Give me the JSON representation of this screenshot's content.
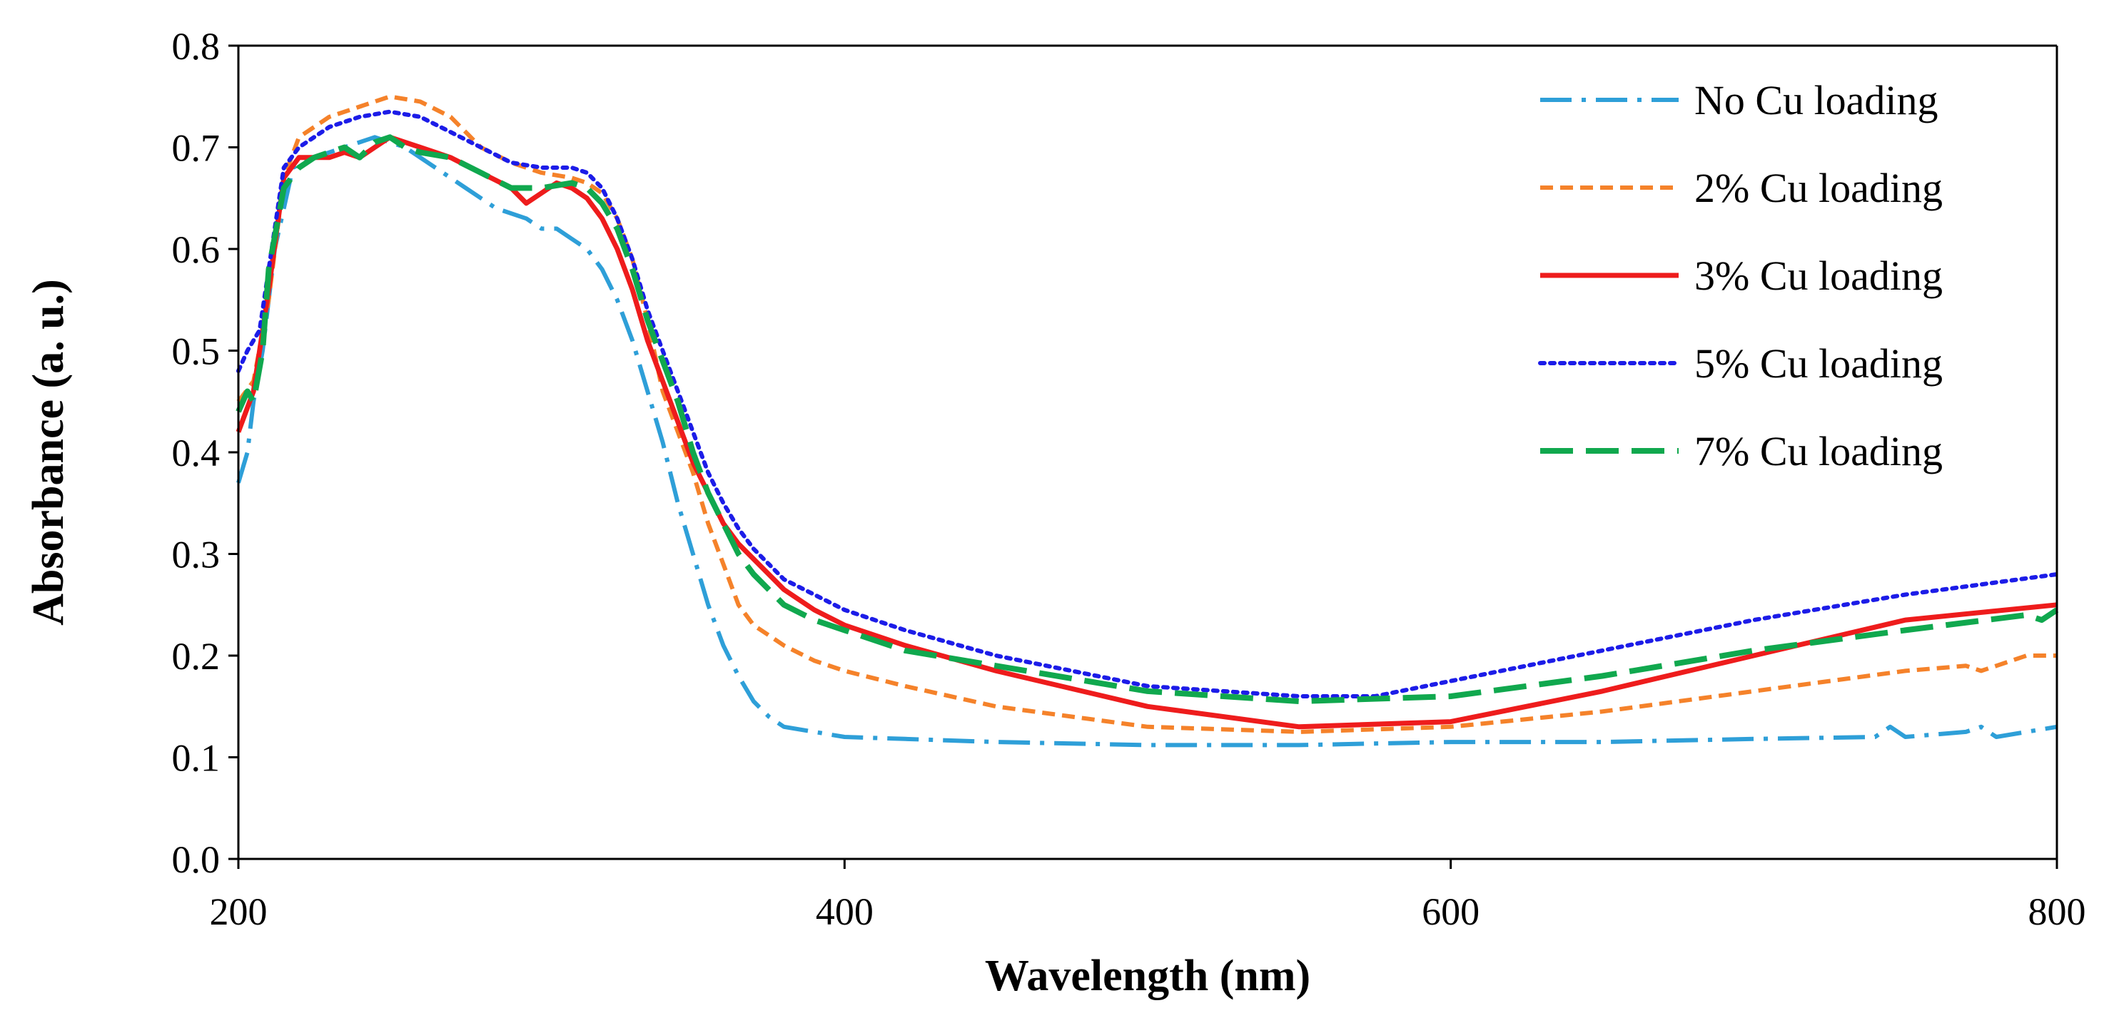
{
  "chart_data": {
    "type": "line",
    "title": "",
    "xlabel": "Wavelength (nm)",
    "ylabel": "Absorbance (a. u.)",
    "xlim": [
      200,
      800
    ],
    "ylim": [
      0.0,
      0.8
    ],
    "grid": false,
    "legend_position": "top-right",
    "x_ticks": [
      200,
      400,
      600,
      800
    ],
    "y_ticks": [
      0.0,
      0.1,
      0.2,
      0.3,
      0.4,
      0.5,
      0.6,
      0.7,
      0.8
    ],
    "x_tick_labels": [
      "200",
      "400",
      "600",
      "800"
    ],
    "y_tick_labels": [
      "0.0",
      "0.1",
      "0.2",
      "0.3",
      "0.4",
      "0.5",
      "0.6",
      "0.7",
      "0.8"
    ],
    "series": [
      {
        "name": "No Cu loading",
        "color": "#2e9fd8",
        "style": "dash-dot",
        "x": [
          200,
          203,
          205,
          208,
          212,
          218,
          225,
          235,
          245,
          255,
          265,
          275,
          285,
          295,
          300,
          305,
          310,
          315,
          320,
          325,
          330,
          335,
          340,
          345,
          350,
          355,
          360,
          365,
          370,
          375,
          380,
          390,
          400,
          420,
          450,
          500,
          550,
          600,
          650,
          700,
          740,
          745,
          750,
          770,
          775,
          780,
          800
        ],
        "y": [
          0.37,
          0.4,
          0.45,
          0.5,
          0.6,
          0.68,
          0.69,
          0.7,
          0.71,
          0.7,
          0.68,
          0.66,
          0.64,
          0.63,
          0.62,
          0.62,
          0.61,
          0.6,
          0.58,
          0.55,
          0.51,
          0.46,
          0.41,
          0.35,
          0.3,
          0.25,
          0.21,
          0.18,
          0.155,
          0.14,
          0.13,
          0.125,
          0.12,
          0.118,
          0.115,
          0.112,
          0.112,
          0.115,
          0.115,
          0.118,
          0.12,
          0.13,
          0.12,
          0.125,
          0.13,
          0.12,
          0.13
        ]
      },
      {
        "name": "2% Cu loading",
        "color": "#f5822a",
        "style": "dashed",
        "x": [
          200,
          205,
          210,
          215,
          220,
          225,
          230,
          240,
          250,
          260,
          270,
          280,
          290,
          300,
          310,
          315,
          320,
          325,
          330,
          335,
          340,
          345,
          350,
          355,
          360,
          365,
          370,
          375,
          380,
          390,
          400,
          420,
          450,
          500,
          550,
          600,
          650,
          700,
          750,
          770,
          775,
          780,
          790,
          800
        ],
        "y": [
          0.45,
          0.47,
          0.55,
          0.67,
          0.71,
          0.72,
          0.73,
          0.74,
          0.75,
          0.745,
          0.73,
          0.7,
          0.685,
          0.675,
          0.67,
          0.665,
          0.655,
          0.63,
          0.59,
          0.53,
          0.46,
          0.42,
          0.38,
          0.33,
          0.29,
          0.25,
          0.23,
          0.22,
          0.21,
          0.195,
          0.185,
          0.17,
          0.15,
          0.13,
          0.125,
          0.13,
          0.145,
          0.165,
          0.185,
          0.19,
          0.185,
          0.19,
          0.2,
          0.2
        ]
      },
      {
        "name": "3% Cu loading",
        "color": "#ee1c1c",
        "style": "solid",
        "x": [
          200,
          205,
          210,
          215,
          220,
          230,
          235,
          240,
          245,
          250,
          255,
          260,
          265,
          270,
          280,
          290,
          295,
          300,
          305,
          310,
          315,
          320,
          325,
          330,
          335,
          340,
          345,
          350,
          355,
          360,
          365,
          370,
          375,
          380,
          390,
          400,
          420,
          450,
          500,
          550,
          600,
          650,
          700,
          750,
          800
        ],
        "y": [
          0.42,
          0.46,
          0.56,
          0.67,
          0.69,
          0.69,
          0.695,
          0.69,
          0.7,
          0.71,
          0.705,
          0.7,
          0.695,
          0.69,
          0.675,
          0.66,
          0.645,
          0.655,
          0.665,
          0.66,
          0.65,
          0.63,
          0.6,
          0.56,
          0.51,
          0.47,
          0.43,
          0.39,
          0.36,
          0.33,
          0.31,
          0.295,
          0.28,
          0.265,
          0.245,
          0.23,
          0.21,
          0.185,
          0.15,
          0.13,
          0.135,
          0.165,
          0.2,
          0.235,
          0.25
        ]
      },
      {
        "name": "5% Cu loading",
        "color": "#1c1ce8",
        "style": "dotted",
        "x": [
          200,
          203,
          207,
          210,
          215,
          220,
          230,
          240,
          250,
          260,
          270,
          280,
          290,
          300,
          310,
          315,
          320,
          325,
          330,
          335,
          340,
          345,
          350,
          355,
          360,
          365,
          370,
          375,
          380,
          390,
          400,
          420,
          450,
          500,
          550,
          575,
          600,
          650,
          700,
          750,
          800
        ],
        "y": [
          0.48,
          0.5,
          0.52,
          0.58,
          0.68,
          0.7,
          0.72,
          0.73,
          0.735,
          0.73,
          0.715,
          0.7,
          0.685,
          0.68,
          0.68,
          0.675,
          0.66,
          0.63,
          0.59,
          0.54,
          0.5,
          0.46,
          0.42,
          0.38,
          0.35,
          0.325,
          0.305,
          0.29,
          0.275,
          0.26,
          0.245,
          0.225,
          0.2,
          0.17,
          0.16,
          0.16,
          0.175,
          0.205,
          0.235,
          0.26,
          0.28
        ]
      },
      {
        "name": "7% Cu loading",
        "color": "#10a84e",
        "style": "long-dash",
        "x": [
          200,
          203,
          205,
          208,
          210,
          215,
          220,
          225,
          230,
          235,
          240,
          245,
          250,
          255,
          260,
          270,
          280,
          290,
          300,
          310,
          315,
          320,
          325,
          330,
          335,
          340,
          345,
          350,
          355,
          360,
          365,
          370,
          375,
          380,
          390,
          400,
          420,
          450,
          500,
          550,
          600,
          650,
          700,
          750,
          790,
          795,
          800
        ],
        "y": [
          0.44,
          0.46,
          0.45,
          0.5,
          0.58,
          0.66,
          0.68,
          0.69,
          0.695,
          0.7,
          0.69,
          0.705,
          0.71,
          0.7,
          0.695,
          0.69,
          0.675,
          0.66,
          0.66,
          0.665,
          0.66,
          0.645,
          0.62,
          0.58,
          0.53,
          0.49,
          0.45,
          0.4,
          0.36,
          0.33,
          0.3,
          0.28,
          0.265,
          0.25,
          0.235,
          0.225,
          0.205,
          0.19,
          0.165,
          0.155,
          0.16,
          0.18,
          0.205,
          0.225,
          0.24,
          0.235,
          0.245
        ]
      }
    ]
  }
}
